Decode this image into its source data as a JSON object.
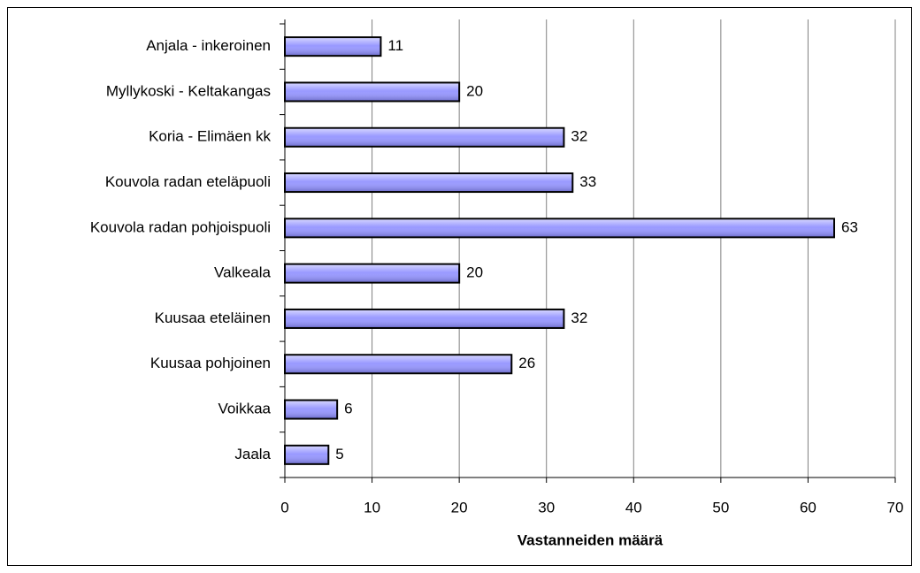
{
  "chart_data": {
    "type": "bar",
    "orientation": "horizontal",
    "categories": [
      "Anjala - inkeroinen",
      "Myllykoski - Keltakangas",
      "Koria - Elimäen kk",
      "Kouvola radan eteläpuoli",
      "Kouvola radan pohjoispuoli",
      "Valkeala",
      "Kuusaa eteläinen",
      "Kuusaa pohjoinen",
      "Voikkaa",
      "Jaala"
    ],
    "values": [
      11,
      20,
      32,
      33,
      63,
      20,
      32,
      26,
      6,
      5
    ],
    "color": "#9999ff",
    "x_label": "Vastanneiden määrä",
    "xlim": [
      0,
      70
    ],
    "xticks": [
      0,
      10,
      20,
      30,
      40,
      50,
      60,
      70
    ],
    "grid": true
  }
}
